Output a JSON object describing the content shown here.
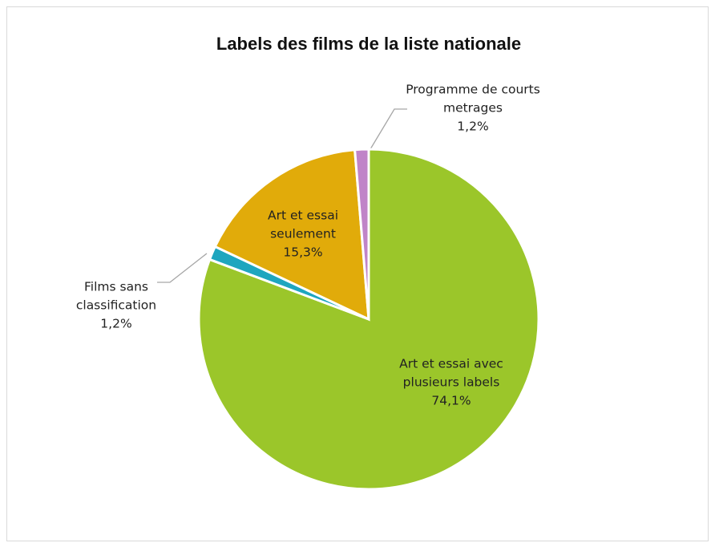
{
  "chart_data": {
    "type": "pie",
    "title": "Labels des films de la liste nationale",
    "categories": [
      "Art et essai avec plusieurs labels",
      "Films sans classification",
      "Art et essai seulement",
      "Programme de courts metrages"
    ],
    "values": [
      74.1,
      1.2,
      15.3,
      1.2
    ],
    "value_labels": [
      "74,1%",
      "1,2%",
      "15,3%",
      "1,2%"
    ],
    "colors": [
      "#9bc62a",
      "#1ea6bf",
      "#e1ab0a",
      "#c084c8"
    ]
  }
}
